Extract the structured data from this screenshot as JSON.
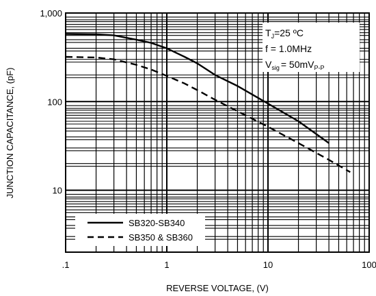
{
  "chart_data": {
    "type": "line",
    "xlabel": "REVERSE VOLTAGE, (V)",
    "ylabel": "JUNCTION CAPACITANCE, (pF)",
    "xscale": "log",
    "yscale": "log",
    "xlim": [
      0.1,
      100
    ],
    "ylim": [
      2,
      1000
    ],
    "grid": true,
    "x_tick_labels": [
      ".1",
      "1",
      "10",
      "100"
    ],
    "y_tick_labels": [
      "1,000",
      "100",
      "10"
    ],
    "annotations": {
      "tj": {
        "main": "T",
        "sub": "J",
        "rest": "=25 ºC"
      },
      "freq": "f = 1.0MHz",
      "vsig": {
        "main": "V",
        "sub": "sig",
        "rest": "= 50mV",
        "sub2": "P-P"
      }
    },
    "legend_position": "bottom-left",
    "series": [
      {
        "name": "SB320-SB340",
        "style": "solid",
        "x": [
          0.1,
          0.2,
          0.3,
          0.5,
          0.7,
          1.0,
          1.5,
          2.0,
          3.0,
          5.0,
          10,
          20,
          40
        ],
        "y": [
          580,
          575,
          560,
          500,
          460,
          400,
          320,
          270,
          200,
          150,
          95,
          60,
          34
        ]
      },
      {
        "name": "SB350 & SB360",
        "style": "dashed",
        "x": [
          0.1,
          0.2,
          0.3,
          0.5,
          0.7,
          1.0,
          1.5,
          2.0,
          3.0,
          5.0,
          10,
          20,
          40,
          65
        ],
        "y": [
          320,
          315,
          300,
          260,
          230,
          195,
          160,
          135,
          105,
          78,
          52,
          34,
          22,
          16
        ]
      }
    ]
  }
}
